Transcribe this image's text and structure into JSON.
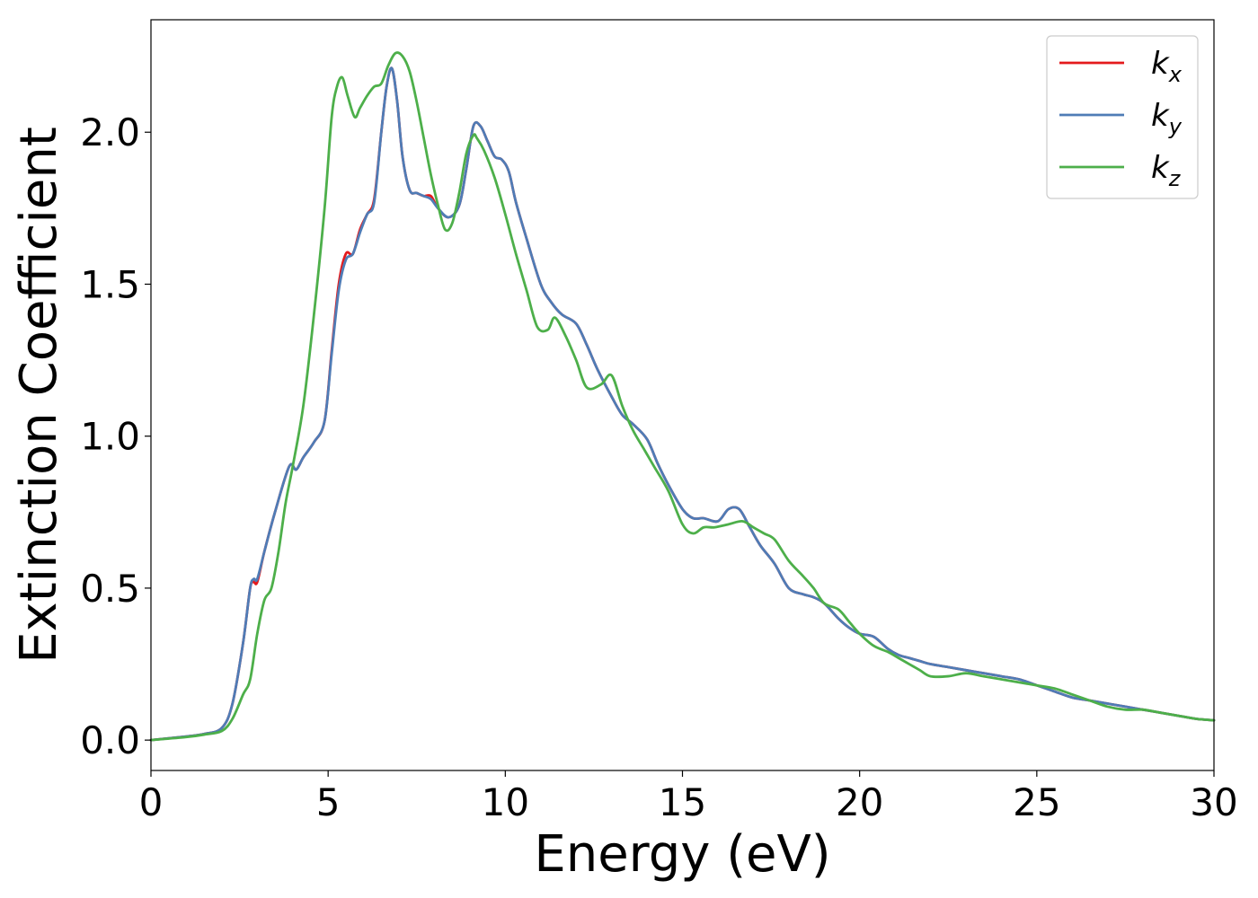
{
  "chart_data": {
    "type": "line",
    "xlabel": "Energy (eV)",
    "ylabel": "Extinction Coefficient",
    "xlim": [
      0,
      30
    ],
    "ylim": [
      -0.1,
      2.37
    ],
    "xticks": [
      "0",
      "5",
      "10",
      "15",
      "20",
      "25",
      "30"
    ],
    "yticks": [
      "0.0",
      "0.5",
      "1.0",
      "1.5",
      "2.0"
    ],
    "grid": false,
    "legend_position": "top-right",
    "series": [
      {
        "name": "k",
        "subscript": "x",
        "color": "#e41a1c",
        "x": [
          0,
          1,
          1.5,
          2,
          2.3,
          2.6,
          2.8,
          2.9,
          3,
          3.2,
          3.5,
          3.9,
          4.1,
          4.3,
          4.6,
          4.9,
          5.1,
          5.3,
          5.5,
          5.7,
          5.9,
          6.1,
          6.3,
          6.5,
          6.65,
          6.8,
          6.95,
          7.1,
          7.3,
          7.5,
          7.7,
          7.9,
          8.1,
          8.4,
          8.7,
          8.9,
          9.1,
          9.3,
          9.5,
          9.7,
          9.9,
          10.1,
          10.3,
          10.6,
          11,
          11.3,
          11.6,
          12,
          12.3,
          12.6,
          13,
          13.3,
          13.6,
          14,
          14.3,
          14.6,
          15,
          15.3,
          15.6,
          16,
          16.3,
          16.6,
          16.9,
          17.2,
          17.6,
          18,
          18.4,
          18.7,
          19,
          19.4,
          19.7,
          20,
          20.4,
          20.8,
          21.1,
          21.4,
          21.7,
          22,
          22.5,
          23,
          23.5,
          24,
          24.5,
          25,
          25.5,
          26,
          26.5,
          27,
          27.5,
          28,
          28.5,
          29,
          29.5,
          30
        ],
        "y": [
          0,
          0.012,
          0.02,
          0.04,
          0.12,
          0.32,
          0.5,
          0.52,
          0.52,
          0.62,
          0.75,
          0.9,
          0.89,
          0.93,
          0.98,
          1.05,
          1.28,
          1.5,
          1.6,
          1.6,
          1.68,
          1.73,
          1.78,
          2.0,
          2.15,
          2.21,
          2.1,
          1.92,
          1.81,
          1.8,
          1.79,
          1.79,
          1.75,
          1.72,
          1.76,
          1.88,
          2.02,
          2.02,
          1.97,
          1.92,
          1.91,
          1.87,
          1.77,
          1.65,
          1.5,
          1.44,
          1.4,
          1.37,
          1.3,
          1.22,
          1.13,
          1.07,
          1.04,
          0.99,
          0.91,
          0.84,
          0.76,
          0.73,
          0.73,
          0.72,
          0.76,
          0.76,
          0.7,
          0.64,
          0.58,
          0.5,
          0.48,
          0.47,
          0.45,
          0.4,
          0.37,
          0.35,
          0.34,
          0.3,
          0.28,
          0.27,
          0.26,
          0.25,
          0.24,
          0.23,
          0.22,
          0.21,
          0.2,
          0.18,
          0.16,
          0.14,
          0.13,
          0.12,
          0.11,
          0.1,
          0.09,
          0.08,
          0.07,
          0.065
        ]
      },
      {
        "name": "k",
        "subscript": "y",
        "color": "#4f7cb6",
        "x": [
          0,
          1,
          1.5,
          2,
          2.3,
          2.6,
          2.8,
          2.9,
          3,
          3.2,
          3.5,
          3.9,
          4.1,
          4.3,
          4.6,
          4.9,
          5.1,
          5.3,
          5.5,
          5.7,
          5.9,
          6.1,
          6.3,
          6.5,
          6.65,
          6.8,
          6.95,
          7.1,
          7.3,
          7.5,
          7.7,
          7.9,
          8.1,
          8.4,
          8.7,
          8.9,
          9.1,
          9.3,
          9.5,
          9.7,
          9.9,
          10.1,
          10.3,
          10.6,
          11,
          11.3,
          11.6,
          12,
          12.3,
          12.6,
          13,
          13.3,
          13.6,
          14,
          14.3,
          14.6,
          15,
          15.3,
          15.6,
          16,
          16.3,
          16.6,
          16.9,
          17.2,
          17.6,
          18,
          18.4,
          18.7,
          19,
          19.4,
          19.7,
          20,
          20.4,
          20.8,
          21.1,
          21.4,
          21.7,
          22,
          22.5,
          23,
          23.5,
          24,
          24.5,
          25,
          25.5,
          26,
          26.5,
          27,
          27.5,
          28,
          28.5,
          29,
          29.5,
          30
        ],
        "y": [
          0,
          0.012,
          0.02,
          0.04,
          0.12,
          0.32,
          0.5,
          0.53,
          0.53,
          0.62,
          0.75,
          0.9,
          0.89,
          0.93,
          0.98,
          1.05,
          1.27,
          1.48,
          1.58,
          1.6,
          1.67,
          1.73,
          1.77,
          2.0,
          2.15,
          2.21,
          2.1,
          1.92,
          1.81,
          1.8,
          1.79,
          1.78,
          1.75,
          1.72,
          1.76,
          1.88,
          2.02,
          2.02,
          1.97,
          1.92,
          1.91,
          1.87,
          1.77,
          1.65,
          1.5,
          1.44,
          1.4,
          1.37,
          1.3,
          1.22,
          1.13,
          1.07,
          1.04,
          0.99,
          0.91,
          0.84,
          0.76,
          0.73,
          0.73,
          0.72,
          0.76,
          0.76,
          0.7,
          0.64,
          0.58,
          0.5,
          0.48,
          0.47,
          0.45,
          0.4,
          0.37,
          0.35,
          0.34,
          0.3,
          0.28,
          0.27,
          0.26,
          0.25,
          0.24,
          0.23,
          0.22,
          0.21,
          0.2,
          0.18,
          0.16,
          0.14,
          0.13,
          0.12,
          0.11,
          0.1,
          0.09,
          0.08,
          0.07,
          0.065
        ]
      },
      {
        "name": "k",
        "subscript": "z",
        "color": "#4daf4a",
        "x": [
          0,
          1,
          1.5,
          2,
          2.3,
          2.6,
          2.8,
          3,
          3.2,
          3.4,
          3.6,
          3.8,
          4,
          4.3,
          4.6,
          4.9,
          5.1,
          5.25,
          5.4,
          5.55,
          5.75,
          5.9,
          6.1,
          6.3,
          6.5,
          6.7,
          6.9,
          7.1,
          7.3,
          7.5,
          7.7,
          7.9,
          8.1,
          8.3,
          8.5,
          8.7,
          8.9,
          9.1,
          9.2,
          9.4,
          9.7,
          10,
          10.3,
          10.6,
          10.9,
          11.2,
          11.4,
          11.7,
          12,
          12.3,
          12.7,
          13,
          13.3,
          13.6,
          13.9,
          14.2,
          14.6,
          15,
          15.3,
          15.6,
          15.9,
          16.3,
          16.7,
          17,
          17.3,
          17.6,
          18,
          18.4,
          18.7,
          19,
          19.4,
          19.7,
          20,
          20.4,
          20.8,
          21.1,
          21.4,
          21.7,
          22,
          22.5,
          23,
          23.5,
          24,
          24.5,
          25,
          25.5,
          26,
          26.5,
          27,
          27.5,
          28,
          28.5,
          29,
          29.5,
          30
        ],
        "y": [
          0,
          0.01,
          0.018,
          0.03,
          0.07,
          0.15,
          0.2,
          0.35,
          0.46,
          0.5,
          0.62,
          0.78,
          0.9,
          1.1,
          1.4,
          1.75,
          2.05,
          2.15,
          2.18,
          2.12,
          2.05,
          2.08,
          2.12,
          2.15,
          2.16,
          2.22,
          2.26,
          2.25,
          2.2,
          2.1,
          1.98,
          1.86,
          1.76,
          1.68,
          1.7,
          1.8,
          1.93,
          1.99,
          1.98,
          1.94,
          1.85,
          1.73,
          1.6,
          1.48,
          1.36,
          1.35,
          1.39,
          1.33,
          1.25,
          1.16,
          1.17,
          1.2,
          1.1,
          1.02,
          0.96,
          0.9,
          0.82,
          0.71,
          0.68,
          0.7,
          0.7,
          0.71,
          0.72,
          0.7,
          0.68,
          0.66,
          0.59,
          0.54,
          0.5,
          0.45,
          0.43,
          0.39,
          0.35,
          0.31,
          0.29,
          0.27,
          0.25,
          0.23,
          0.21,
          0.21,
          0.22,
          0.21,
          0.2,
          0.19,
          0.18,
          0.17,
          0.15,
          0.13,
          0.11,
          0.1,
          0.1,
          0.09,
          0.08,
          0.07,
          0.065
        ]
      }
    ]
  }
}
